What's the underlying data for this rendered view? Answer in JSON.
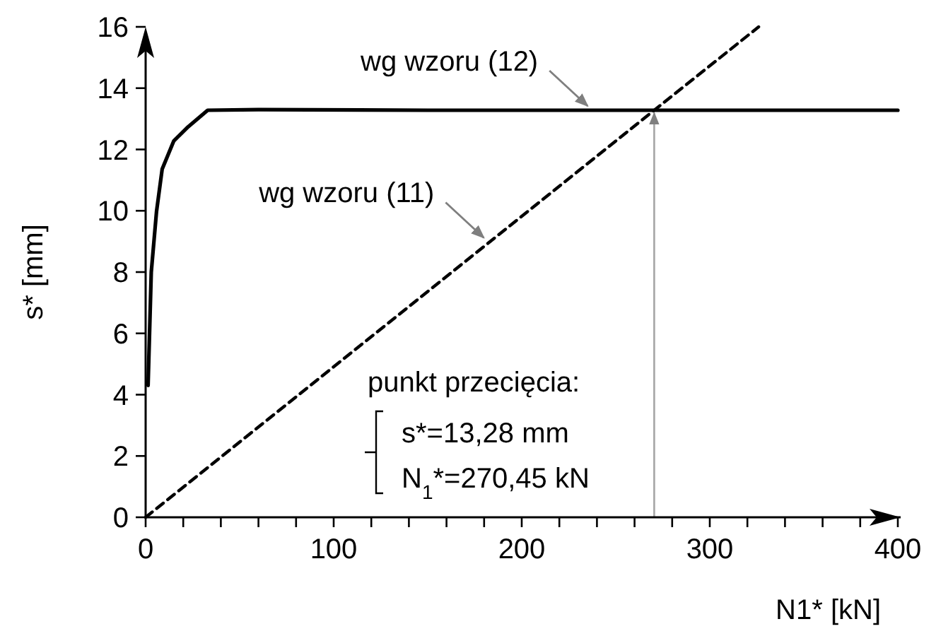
{
  "chart_data": {
    "type": "line",
    "xlabel": "N1* [kN]",
    "ylabel": "s* [mm]",
    "xlim": [
      0,
      400
    ],
    "ylim": [
      0,
      16
    ],
    "xticks": [
      0,
      {
        "value": 20,
        "label": null
      },
      {
        "value": 40,
        "label": null
      },
      {
        "value": 60,
        "label": null
      },
      {
        "value": 80,
        "label": null
      },
      100,
      {
        "value": 120,
        "label": null
      },
      {
        "value": 140,
        "label": null
      },
      {
        "value": 160,
        "label": null
      },
      {
        "value": 180,
        "label": null
      },
      200,
      {
        "value": 220,
        "label": null
      },
      {
        "value": 240,
        "label": null
      },
      {
        "value": 260,
        "label": null
      },
      {
        "value": 280,
        "label": null
      },
      300,
      {
        "value": 320,
        "label": null
      },
      {
        "value": 340,
        "label": null
      },
      {
        "value": 360,
        "label": null
      },
      {
        "value": 380,
        "label": null
      },
      400
    ],
    "yticks": [
      0,
      2,
      4,
      6,
      8,
      10,
      12,
      14,
      16
    ],
    "marker": "none",
    "series": [
      {
        "color": "#000000",
        "line_style": "solid",
        "x": [
          1.3,
          3,
          5.8,
          8.8,
          15,
          22.6,
          33,
          60,
          150,
          270.45,
          400
        ],
        "values": [
          4.3,
          8,
          9.98,
          11.36,
          12.28,
          12.74,
          13.28,
          13.3,
          13.28,
          13.28,
          13.28
        ]
      },
      {
        "color": "#000000",
        "line_style": "dashed",
        "x": [
          0,
          270.45,
          326
        ],
        "values": [
          0,
          13.28,
          16
        ]
      }
    ],
    "ref_lines": [
      {
        "axis": "x",
        "value": 270.45,
        "color": "#a6a6a6"
      }
    ],
    "annotations": [
      {
        "text": "wg wzoru (12)",
        "x": 235.8,
        "y": 13.28
      },
      {
        "text": "wg wzoru (11)",
        "x": 180.6,
        "y": 8.98
      },
      "punkt przecięcia:",
      "s*=13,28 mm",
      "N$_{1}$*=270,45 kN"
    ]
  }
}
